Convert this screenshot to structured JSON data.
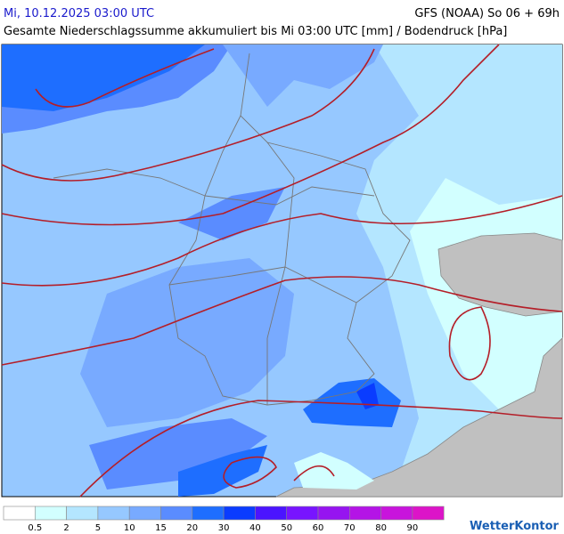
{
  "header": {
    "date": "Mi, 10.12.2025 03:00 UTC",
    "model": "GFS (NOAA) So 06 + 69h",
    "subtitle": "Gesamte Niederschlagssumme akkumuliert bis Mi 03:00 UTC [mm] / Bodendruck [hPa]"
  },
  "legend": {
    "colors": [
      "#ffffff",
      "#d2ffff",
      "#b4e6ff",
      "#96c8ff",
      "#78aaff",
      "#5a8cff",
      "#1e6eff",
      "#0a3cff",
      "#4b14ff",
      "#7814ff",
      "#9614f0",
      "#b414e6",
      "#c814dc",
      "#dc14c8"
    ],
    "labels": [
      0.5,
      2,
      5,
      10,
      15,
      20,
      30,
      40,
      50,
      60,
      70,
      80,
      90
    ]
  },
  "logo": "WetterKontor"
}
